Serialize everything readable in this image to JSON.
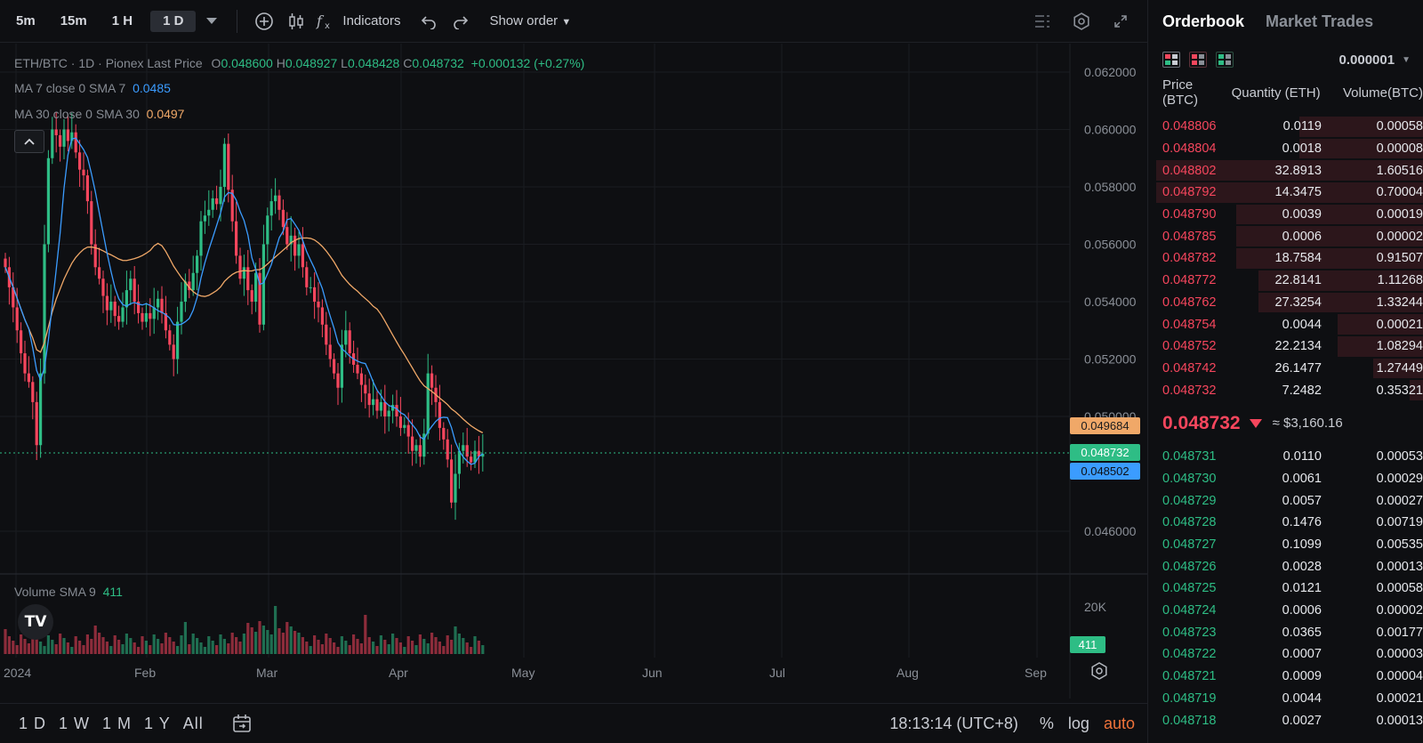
{
  "toolbar": {
    "intervals": [
      "5m",
      "15m",
      "1 H",
      "1 D"
    ],
    "active_interval": "1 D",
    "indicators_label": "Indicators",
    "show_order_label": "Show order"
  },
  "legend": {
    "symbol": "ETH/BTC",
    "interval": "1D",
    "source": "Pionex Last Price",
    "open_label": "O",
    "open": "0.048600",
    "high_label": "H",
    "high": "0.048927",
    "low_label": "L",
    "low": "0.048428",
    "close_label": "C",
    "close": "0.048732",
    "change": "+0.000132 (+0.27%)",
    "ma7_label": "MA 7 close 0 SMA 7",
    "ma7_value": "0.0485",
    "ma30_label": "MA 30 close 0 SMA 30",
    "ma30_value": "0.0497",
    "volume_label": "Volume SMA 9",
    "volume_value": "411"
  },
  "price_axis": [
    "0.062000",
    "0.060000",
    "0.058000",
    "0.056000",
    "0.054000",
    "0.052000",
    "0.050000",
    "0.046000"
  ],
  "price_tags": {
    "ma30": "0.049684",
    "last": "0.048732",
    "ma7": "0.048502",
    "volume": "411"
  },
  "volume_axis": [
    "20K"
  ],
  "time_axis": [
    "2024",
    "Feb",
    "Mar",
    "Apr",
    "May",
    "Jun",
    "Jul",
    "Aug",
    "Sep"
  ],
  "bottombar": {
    "ranges": [
      "1 D",
      "1 W",
      "1 M",
      "1 Y",
      "All"
    ],
    "clock": "18:13:14 (UTC+8)",
    "percent": "%",
    "log": "log",
    "auto": "auto"
  },
  "orderbook": {
    "tabs": [
      "Orderbook",
      "Market Trades"
    ],
    "precision": "0.000001",
    "headers": [
      "Price (BTC)",
      "Quantity (ETH)",
      "Volume(BTC)"
    ],
    "asks": [
      {
        "price": "0.048806",
        "qty": "0.0119",
        "vol": "0.00058",
        "depth": 0.45
      },
      {
        "price": "0.048804",
        "qty": "0.0018",
        "vol": "0.00008",
        "depth": 0.45
      },
      {
        "price": "0.048802",
        "qty": "32.8913",
        "vol": "1.60516",
        "depth": 0.97
      },
      {
        "price": "0.048792",
        "qty": "14.3475",
        "vol": "0.70004",
        "depth": 0.97
      },
      {
        "price": "0.048790",
        "qty": "0.0039",
        "vol": "0.00019",
        "depth": 0.68
      },
      {
        "price": "0.048785",
        "qty": "0.0006",
        "vol": "0.00002",
        "depth": 0.68
      },
      {
        "price": "0.048782",
        "qty": "18.7584",
        "vol": "0.91507",
        "depth": 0.68
      },
      {
        "price": "0.048772",
        "qty": "22.8141",
        "vol": "1.11268",
        "depth": 0.6
      },
      {
        "price": "0.048762",
        "qty": "27.3254",
        "vol": "1.33244",
        "depth": 0.6
      },
      {
        "price": "0.048754",
        "qty": "0.0044",
        "vol": "0.00021",
        "depth": 0.31
      },
      {
        "price": "0.048752",
        "qty": "22.2134",
        "vol": "1.08294",
        "depth": 0.31
      },
      {
        "price": "0.048742",
        "qty": "26.1477",
        "vol": "1.27449",
        "depth": 0.18
      },
      {
        "price": "0.048732",
        "qty": "7.2482",
        "vol": "0.35321",
        "depth": 0.05
      }
    ],
    "last_price": "0.048732",
    "last_usd": "≈ $3,160.16",
    "bids": [
      {
        "price": "0.048731",
        "qty": "0.0110",
        "vol": "0.00053"
      },
      {
        "price": "0.048730",
        "qty": "0.0061",
        "vol": "0.00029"
      },
      {
        "price": "0.048729",
        "qty": "0.0057",
        "vol": "0.00027"
      },
      {
        "price": "0.048728",
        "qty": "0.1476",
        "vol": "0.00719"
      },
      {
        "price": "0.048727",
        "qty": "0.1099",
        "vol": "0.00535"
      },
      {
        "price": "0.048726",
        "qty": "0.0028",
        "vol": "0.00013"
      },
      {
        "price": "0.048725",
        "qty": "0.0121",
        "vol": "0.00058"
      },
      {
        "price": "0.048724",
        "qty": "0.0006",
        "vol": "0.00002"
      },
      {
        "price": "0.048723",
        "qty": "0.0365",
        "vol": "0.00177"
      },
      {
        "price": "0.048722",
        "qty": "0.0007",
        "vol": "0.00003"
      },
      {
        "price": "0.048721",
        "qty": "0.0009",
        "vol": "0.00004"
      },
      {
        "price": "0.048719",
        "qty": "0.0044",
        "vol": "0.00021"
      },
      {
        "price": "0.048718",
        "qty": "0.0027",
        "vol": "0.00013"
      }
    ]
  },
  "colors": {
    "up": "#2ebd85",
    "down": "#f6465d",
    "ma7": "#3b9cff",
    "ma30": "#f0a868",
    "accent": "#f0733a"
  },
  "chart_data": {
    "type": "candlestick",
    "x_ticks": [
      "2024",
      "Feb",
      "Mar",
      "Apr",
      "May",
      "Jun",
      "Jul",
      "Aug",
      "Sep"
    ],
    "y_ticks": [
      0.046,
      0.05,
      0.052,
      0.054,
      0.056,
      0.058,
      0.06,
      0.062
    ],
    "series": [
      {
        "name": "MA 7 close 0 SMA 7",
        "last": 0.0485
      },
      {
        "name": "MA 30 close 0 SMA 30",
        "last": 0.0497
      },
      {
        "name": "Volume SMA 9",
        "last": 411
      }
    ],
    "last_candle": {
      "open": 0.0486,
      "high": 0.048927,
      "low": 0.048428,
      "close": 0.048732
    }
  }
}
